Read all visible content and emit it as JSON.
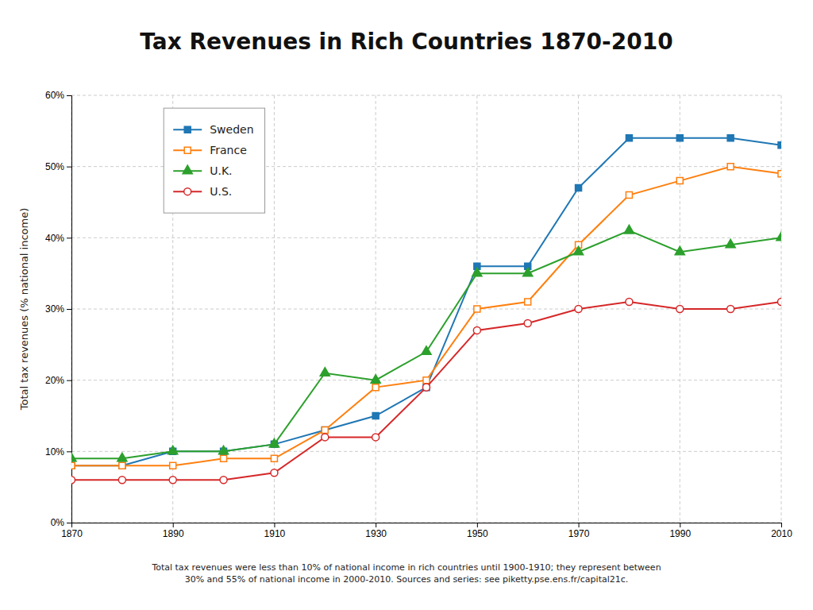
{
  "chart_data": {
    "type": "line",
    "title": "Tax Revenues in Rich Countries 1870-2010",
    "ylabel": "Total tax revenues (% national income)",
    "caption": "Total tax revenues were less than 10% of national income in rich countries until 1900-1910; they represent between\n30% and 55% of national income in 2000-2010. Sources and series: see piketty.pse.ens.fr/capital21c.",
    "x": [
      1870,
      1880,
      1890,
      1900,
      1910,
      1920,
      1930,
      1940,
      1950,
      1960,
      1970,
      1980,
      1990,
      2000,
      2010
    ],
    "xlim": [
      1870,
      2010
    ],
    "xticks": [
      1870,
      1890,
      1910,
      1930,
      1950,
      1970,
      1990,
      2010
    ],
    "ylim": [
      0,
      60
    ],
    "yticks": [
      {
        "value": 0,
        "label": "0%"
      },
      {
        "value": 10,
        "label": "10%"
      },
      {
        "value": 20,
        "label": "20%"
      },
      {
        "value": 30,
        "label": "30%"
      },
      {
        "value": 40,
        "label": "40%"
      },
      {
        "value": 50,
        "label": "50%"
      },
      {
        "value": 60,
        "label": "60%"
      }
    ],
    "grid": true,
    "legend": "upper left",
    "series": [
      {
        "name": "Sweden",
        "marker": "square",
        "values": [
          8,
          8,
          10,
          10,
          11,
          13,
          15,
          19,
          36,
          36,
          47,
          54,
          54,
          54,
          53
        ]
      },
      {
        "name": "France",
        "marker": "square-open",
        "values": [
          8,
          8,
          8,
          9,
          9,
          13,
          19,
          20,
          30,
          31,
          39,
          46,
          48,
          50,
          49
        ]
      },
      {
        "name": "U.K.",
        "marker": "triangle",
        "values": [
          9,
          9,
          10,
          10,
          11,
          21,
          20,
          24,
          35,
          35,
          38,
          41,
          38,
          39,
          40
        ]
      },
      {
        "name": "U.S.",
        "marker": "circle-open",
        "values": [
          6,
          6,
          6,
          6,
          7,
          12,
          12,
          19,
          27,
          28,
          30,
          31,
          30,
          30,
          31
        ]
      }
    ]
  }
}
